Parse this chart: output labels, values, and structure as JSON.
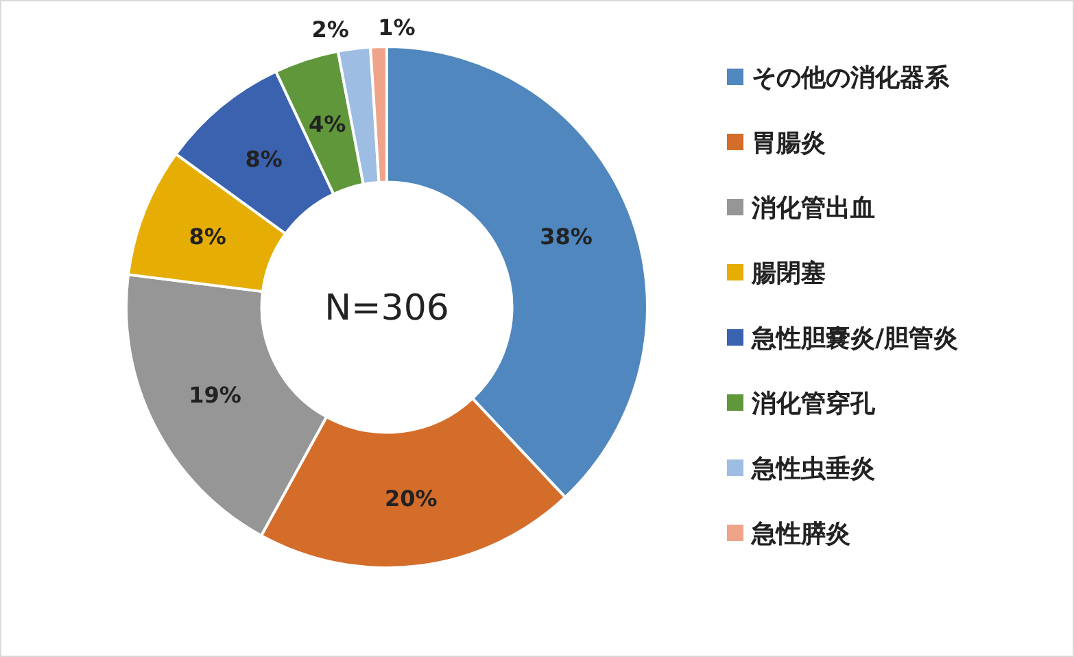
{
  "chart_data": {
    "type": "donut",
    "categories": [
      "その他の消化器系",
      "胃腸炎",
      "消化管出血",
      "腸閉塞",
      "急性胆嚢炎/胆管炎",
      "消化管穿孔",
      "急性虫垂炎",
      "急性膵炎"
    ],
    "values": [
      38,
      20,
      19,
      8,
      8,
      4,
      2,
      1
    ],
    "colors": [
      "#4f87be",
      "#d46c2a",
      "#969696",
      "#e6ad05",
      "#3a62ae",
      "#5f973a",
      "#9dbde3",
      "#efa48a"
    ],
    "value_labels": [
      "38%",
      "20%",
      "19%",
      "8%",
      "8%",
      "4%",
      "2%",
      "1%"
    ],
    "annotations": [
      "N=306"
    ],
    "legend": "right"
  }
}
